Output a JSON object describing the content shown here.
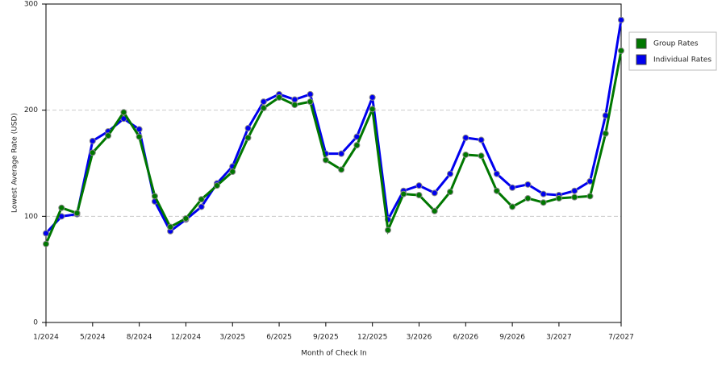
{
  "chart_data": {
    "type": "line",
    "x_label": "Month of Check In",
    "y_label": "Lowest Average Rate (USD)",
    "categories": [
      "1/2024",
      null,
      null,
      "5/2024",
      null,
      null,
      "8/2024",
      null,
      null,
      "12/2024",
      null,
      null,
      "3/2025",
      null,
      null,
      "6/2025",
      null,
      null,
      "9/2025",
      null,
      null,
      "12/2025",
      null,
      null,
      "3/2026",
      null,
      null,
      "6/2026",
      null,
      null,
      "9/2026",
      null,
      null,
      "3/2027",
      null,
      null,
      null,
      "7/2027"
    ],
    "series": [
      {
        "name": "Individual Rates",
        "color": "#0000ee",
        "values": [
          84,
          100,
          102,
          171,
          180,
          192,
          182,
          114,
          86,
          97,
          109,
          131,
          147,
          183,
          208,
          215,
          210,
          215,
          159,
          159,
          175,
          212,
          97,
          124,
          129,
          122,
          140,
          174,
          172,
          140,
          127,
          130,
          121,
          120,
          124,
          133,
          195,
          285
        ]
      },
      {
        "name": "Group Rates",
        "color": "#007700",
        "values": [
          74,
          108,
          103,
          160,
          176,
          198,
          175,
          119,
          90,
          98,
          116,
          129,
          142,
          174,
          202,
          212,
          205,
          208,
          153,
          144,
          167,
          201,
          87,
          121,
          120,
          105,
          123,
          158,
          157,
          124,
          109,
          117,
          113,
          117,
          118,
          119,
          178,
          256
        ]
      }
    ],
    "legend_order": [
      1,
      0
    ],
    "ylim": [
      0,
      300
    ],
    "yticks": [
      0,
      100,
      200,
      300
    ],
    "grid": true,
    "legend": "right"
  }
}
